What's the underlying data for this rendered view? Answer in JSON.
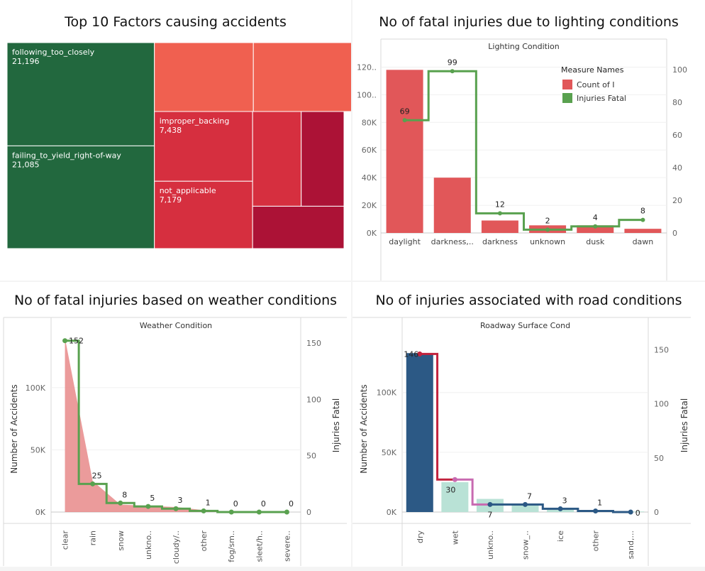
{
  "dashboard": {
    "titles": {
      "treemap": "Top 10 Factors causing accidents",
      "lighting": "No of fatal injuries due to lighting conditions",
      "weather": "No of fatal injuries based on weather conditions",
      "road": "No of injuries associated with road conditions"
    }
  },
  "chart_data": [
    {
      "type": "treemap",
      "title": "Top 10 Factors causing accidents",
      "items": [
        {
          "label": "following_too_closely",
          "value": 21196,
          "value_text": "21,196",
          "color": "#22683e"
        },
        {
          "label": "failing_to_yield_right-of-way",
          "value": 21085,
          "value_text": "21,085",
          "color": "#22683e"
        },
        {
          "label": "",
          "value": 9500,
          "value_text": "",
          "color": "#f06050"
        },
        {
          "label": "",
          "value": 8700,
          "value_text": "",
          "color": "#f06050"
        },
        {
          "label": "",
          "value": 8000,
          "value_text": "",
          "color": "#d62f3f"
        },
        {
          "label": "improper_backing",
          "value": 7438,
          "value_text": "7,438",
          "color": "#d62f3f"
        },
        {
          "label": "not_applicable",
          "value": 7179,
          "value_text": "7,179",
          "color": "#d62f3f"
        },
        {
          "label": "",
          "value": 5000,
          "value_text": "",
          "color": "#d62f3f"
        },
        {
          "label": "",
          "value": 4400,
          "value_text": "",
          "color": "#ac1236"
        },
        {
          "label": "",
          "value": 4200,
          "value_text": "",
          "color": "#ac1236"
        }
      ]
    },
    {
      "type": "bar",
      "title": "Lighting Condition",
      "categories": [
        "daylight",
        "darkness,..",
        "darkness",
        "unknown",
        "dusk",
        "dawn"
      ],
      "ylim": [
        0,
        130000
      ],
      "y_ticks": [
        "0K",
        "20K",
        "40K",
        "60K",
        "80K",
        "100..",
        "120.."
      ],
      "y2lim": [
        0,
        110
      ],
      "y2_ticks": [
        "0",
        "20",
        "40",
        "60",
        "80",
        "100"
      ],
      "legend_title": "Measure Names",
      "series": [
        {
          "name": "Count of I",
          "values": [
            118000,
            40000,
            9000,
            5500,
            5500,
            3000
          ],
          "color": "#e15759",
          "axis": "left"
        },
        {
          "name": "Injuries Fatal",
          "values": [
            69,
            99,
            12,
            2,
            4,
            8
          ],
          "labels": [
            "69",
            "99",
            "12",
            "2",
            "4",
            "8"
          ],
          "color": "#59a14f",
          "axis": "right",
          "style": "step"
        }
      ]
    },
    {
      "type": "area",
      "title": "Weather Condition",
      "categories": [
        "clear",
        "rain",
        "snow",
        "unkno..",
        "cloudy/..",
        "other",
        "fog/sm..",
        "sleet/h..",
        "severe.."
      ],
      "ylabel": "Number of Accidents",
      "y2label": "Injuries Fatal",
      "ylim": [
        0,
        145000
      ],
      "y_ticks": [
        "0K",
        "50K",
        "100K"
      ],
      "y2lim": [
        0,
        160
      ],
      "y2_ticks": [
        "0",
        "50",
        "100",
        "150"
      ],
      "series": [
        {
          "name": "Number of Accidents",
          "values": [
            140000,
            25000,
            6000,
            5000,
            4000,
            1500,
            300,
            200,
            100
          ],
          "color": "#e8898a",
          "axis": "left"
        },
        {
          "name": "Injuries Fatal",
          "values": [
            152,
            25,
            8,
            5,
            3,
            1,
            0,
            0,
            0
          ],
          "labels": [
            "152",
            "25",
            "8",
            "5",
            "3",
            "1",
            "0",
            "0",
            "0"
          ],
          "color": "#59a14f",
          "axis": "right",
          "style": "step"
        }
      ]
    },
    {
      "type": "bar",
      "title": "Roadway Surface Cond",
      "categories": [
        "dry",
        "wet",
        "unkno..",
        "snow_..",
        "ice",
        "other",
        "sand,..."
      ],
      "ylabel": "Number of Accidents",
      "y2label": "Injuries Fatal",
      "ylim": [
        0,
        145000
      ],
      "y_ticks": [
        "0K",
        "50K",
        "100K"
      ],
      "y2lim": [
        0,
        160
      ],
      "y2_ticks": [
        "0",
        "50",
        "100",
        "150"
      ],
      "series": [
        {
          "name": "Number of Accidents",
          "values": [
            133000,
            25000,
            11000,
            6000,
            2000,
            1000,
            500
          ],
          "colors": [
            "#2c5985",
            "#b9e2d6",
            "#b9e2d6",
            "#b9e2d6",
            "#b9e2d6",
            "#b9e2d6",
            "#b9e2d6"
          ],
          "axis": "left"
        },
        {
          "name": "Injuries Fatal",
          "values": [
            146,
            30,
            7,
            7,
            3,
            1,
            0
          ],
          "labels": [
            "146",
            "30",
            "7",
            "7",
            "3",
            "1",
            "0"
          ],
          "axis": "right",
          "style": "step",
          "color_start": "#c2223d",
          "color_mid": "#c86ab1",
          "color_end": "#2c5985"
        }
      ]
    }
  ]
}
